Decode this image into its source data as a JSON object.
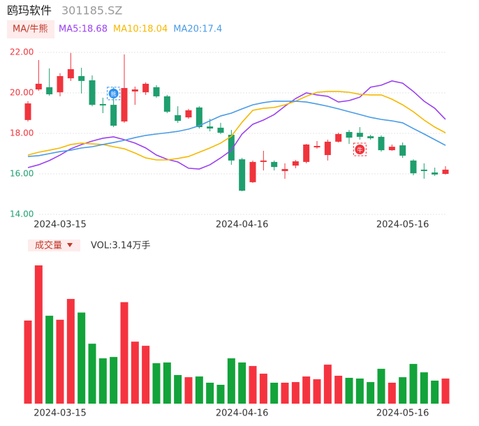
{
  "chart_data": [
    {
      "type": "candlestick",
      "title": "鸥玛软件",
      "subtitle": "301185.SZ",
      "button": "MA/牛熊",
      "up_color": "#f0343c",
      "down_color": "#1f9e6e",
      "categories": [
        null,
        null,
        null,
        "2024-03-15",
        null,
        null,
        null,
        null,
        null,
        null,
        null,
        null,
        null,
        null,
        null,
        null,
        null,
        null,
        null,
        null,
        "2024-04-16",
        null,
        null,
        null,
        null,
        null,
        null,
        null,
        null,
        null,
        null,
        null,
        null,
        null,
        null,
        "2024-05-16",
        null,
        null,
        null,
        null
      ],
      "open": [
        18.66,
        20.17,
        20.28,
        20.03,
        20.72,
        20.83,
        20.62,
        19.45,
        19.41,
        18.59,
        20.07,
        20.03,
        20.28,
        19.83,
        18.9,
        18.79,
        19.28,
        18.34,
        18.28,
        17.93,
        16.72,
        15.59,
        16.59,
        16.59,
        16.14,
        16.41,
        16.59,
        17.31,
        16.93,
        17.59,
        18.07,
        18.03,
        17.86,
        17.83,
        17.17,
        17.41,
        16.66,
        16.21,
        16.07,
        16.0
      ],
      "high": [
        19.59,
        21.62,
        21.21,
        20.97,
        21.97,
        21.24,
        20.86,
        19.76,
        20.28,
        21.9,
        20.31,
        20.52,
        20.38,
        19.9,
        19.34,
        19.21,
        19.34,
        18.72,
        18.52,
        18.17,
        16.79,
        16.66,
        17.14,
        16.66,
        16.52,
        16.69,
        17.48,
        17.62,
        17.69,
        18.03,
        18.17,
        18.31,
        17.93,
        17.9,
        17.45,
        17.55,
        16.72,
        16.52,
        16.31,
        16.38
      ],
      "low": [
        18.59,
        20.1,
        19.86,
        19.83,
        20.59,
        19.97,
        19.34,
        19.0,
        18.31,
        18.52,
        19.41,
        19.9,
        19.76,
        19.0,
        18.52,
        18.72,
        18.24,
        18.1,
        17.97,
        16.45,
        15.14,
        15.55,
        16.17,
        16.17,
        15.76,
        16.28,
        16.52,
        17.24,
        16.66,
        17.55,
        17.48,
        17.69,
        17.69,
        17.1,
        17.14,
        16.79,
        15.93,
        15.76,
        15.9,
        15.97
      ],
      "close": [
        19.48,
        20.45,
        19.93,
        20.83,
        21.17,
        20.59,
        19.41,
        19.38,
        18.38,
        20.24,
        20.17,
        20.45,
        19.83,
        19.07,
        18.62,
        19.14,
        18.31,
        18.24,
        18.03,
        16.66,
        15.17,
        16.59,
        16.66,
        16.34,
        16.24,
        16.62,
        17.45,
        17.38,
        17.59,
        17.97,
        17.79,
        17.83,
        17.76,
        17.17,
        17.34,
        16.9,
        16.03,
        16.14,
        15.97,
        16.21
      ],
      "series": [
        {
          "name": "MA5:18.68",
          "color": "#9b40f0",
          "values": [
            16.31,
            16.45,
            16.66,
            16.93,
            17.24,
            17.45,
            17.62,
            17.76,
            17.83,
            17.69,
            17.52,
            17.28,
            16.93,
            16.72,
            16.59,
            16.28,
            16.24,
            16.45,
            16.79,
            17.17,
            17.97,
            18.45,
            18.66,
            18.93,
            19.34,
            19.72,
            20.0,
            19.9,
            19.83,
            19.55,
            19.62,
            19.79,
            20.28,
            20.38,
            20.59,
            20.48,
            20.07,
            19.59,
            19.24,
            18.69
          ]
        },
        {
          "name": "MA10:18.04",
          "color": "#f5b800",
          "values": [
            16.93,
            17.07,
            17.17,
            17.28,
            17.45,
            17.52,
            17.48,
            17.45,
            17.34,
            17.24,
            17.03,
            16.79,
            16.69,
            16.69,
            16.76,
            16.86,
            17.07,
            17.28,
            17.52,
            17.86,
            18.55,
            19.14,
            19.24,
            19.28,
            19.41,
            19.59,
            19.83,
            20.03,
            20.07,
            20.07,
            20.03,
            19.93,
            19.9,
            19.9,
            19.69,
            19.41,
            19.07,
            18.66,
            18.31,
            18.03
          ]
        },
        {
          "name": "MA20:17.4",
          "color": "#4a9be6",
          "values": [
            16.86,
            16.9,
            17.0,
            17.1,
            17.17,
            17.28,
            17.34,
            17.45,
            17.55,
            17.66,
            17.79,
            17.9,
            17.97,
            18.03,
            18.1,
            18.21,
            18.38,
            18.62,
            18.86,
            19.0,
            19.21,
            19.41,
            19.52,
            19.59,
            19.59,
            19.59,
            19.55,
            19.45,
            19.34,
            19.21,
            19.07,
            18.93,
            18.79,
            18.69,
            18.62,
            18.52,
            18.24,
            17.97,
            17.69,
            17.41
          ]
        }
      ],
      "annotations": [
        {
          "text": "熊",
          "candle": 8,
          "color": "#2f8ff0"
        },
        {
          "text": "牛",
          "candle": 31,
          "color": "#f0343c"
        }
      ],
      "ylim": [
        14,
        22
      ],
      "yticks": [
        {
          "value": 22,
          "label": "22.00"
        },
        {
          "value": 20,
          "label": "20.00"
        },
        {
          "value": 18,
          "label": "18.00"
        },
        {
          "value": 16,
          "label": "16.00"
        },
        {
          "value": 14,
          "label": "14.00"
        }
      ],
      "ytick_colors": [
        "#f0343c",
        "#f0343c",
        "#f0343c",
        "#1f9e6e",
        "#1f9e6e"
      ],
      "grid": true
    },
    {
      "type": "bar",
      "button": "成交量",
      "legend": "VOL:3.14万手",
      "up_color": "#f5333f",
      "down_color": "#12a33a",
      "categories": [
        null,
        null,
        null,
        "2024-03-15",
        null,
        null,
        null,
        null,
        null,
        null,
        null,
        null,
        null,
        null,
        null,
        null,
        null,
        null,
        null,
        null,
        "2024-04-16",
        null,
        null,
        null,
        null,
        null,
        null,
        null,
        null,
        null,
        null,
        null,
        null,
        null,
        null,
        "2024-05-16",
        null,
        null,
        null,
        null
      ],
      "values": [
        10.4,
        17.3,
        11.0,
        10.5,
        13.1,
        11.4,
        7.5,
        5.67,
        5.84,
        12.7,
        7.76,
        7.24,
        5.06,
        5.15,
        3.58,
        3.31,
        3.4,
        2.62,
        2.36,
        5.67,
        5.15,
        4.71,
        3.75,
        2.62,
        2.62,
        2.7,
        3.4,
        3.05,
        4.88,
        3.49,
        3.23,
        3.14,
        2.7,
        4.36,
        2.62,
        3.31,
        4.97,
        3.92,
        2.88,
        3.14
      ],
      "ylim": [
        0,
        18
      ]
    }
  ]
}
